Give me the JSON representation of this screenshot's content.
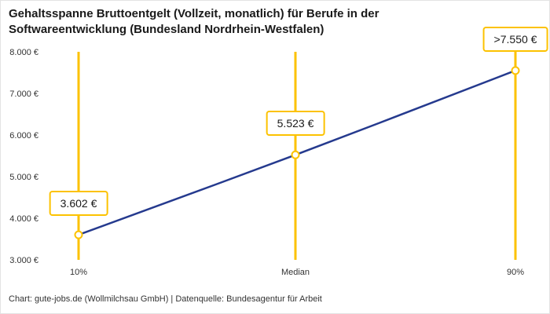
{
  "title": "Gehaltsspanne Bruttoentgelt (Vollzeit, monatlich) für Berufe in der Softwareentwicklung (Bundesland Nordrhein-Westfalen)",
  "footer": "Chart: gute-jobs.de (Wollmilchsau GmbH) | Datenquelle: Bundesagentur für Arbeit",
  "chart_data": {
    "type": "line",
    "title": "Gehaltsspanne Bruttoentgelt (Vollzeit, monatlich) für Berufe in der Softwareentwicklung (Bundesland Nordrhein-Westfalen)",
    "categories": [
      "10%",
      "Median",
      "90%"
    ],
    "values": [
      3602,
      5523,
      7550
    ],
    "point_labels": [
      "3.602 €",
      "5.523 €",
      ">7.550 €"
    ],
    "xlabel": "",
    "ylabel": "",
    "ylim": [
      3000,
      8000
    ],
    "yticks": [
      3000,
      4000,
      5000,
      6000,
      7000,
      8000
    ],
    "ytick_labels": [
      "3.000 €",
      "4.000 €",
      "5.000 €",
      "6.000 €",
      "7.000 €",
      "8.000 €"
    ],
    "grid": false,
    "legend": "none",
    "colors": {
      "line": "#253a8e",
      "accent": "#fcc200",
      "text": "#1a1a1a",
      "marker_fill": "#ffffff"
    }
  }
}
